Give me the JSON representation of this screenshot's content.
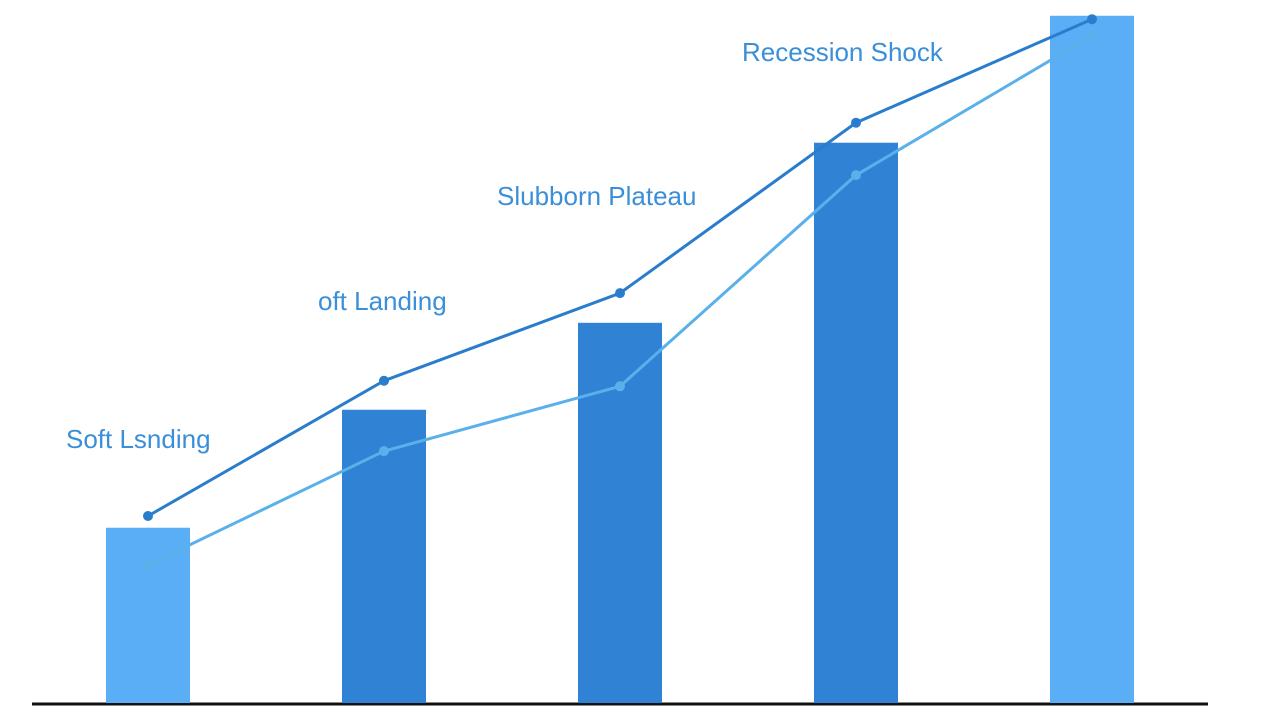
{
  "chart_data": {
    "type": "bar-line",
    "categories": [
      null,
      null,
      null,
      null,
      null
    ],
    "bars": {
      "values": [
        25.4,
        42.5,
        55.1,
        81.2,
        99.6
      ],
      "colors": [
        "#5aaef5",
        "#2f82d4",
        "#2f82d4",
        "#2f82d4",
        "#5aaef5"
      ]
    },
    "series": [
      {
        "color": "#2a7ccc",
        "values": [
          27.1,
          46.7,
          59.4,
          84.1,
          99.1
        ]
      },
      {
        "color": "#5ab0ea",
        "values": [
          20.0,
          36.5,
          45.9,
          76.5,
          96.7
        ]
      }
    ],
    "annotations": [
      "Soft Lsnding",
      "oft Landing",
      "Slubborn Plateau",
      "Recession Shock"
    ],
    "ylim": [
      0,
      100
    ]
  }
}
